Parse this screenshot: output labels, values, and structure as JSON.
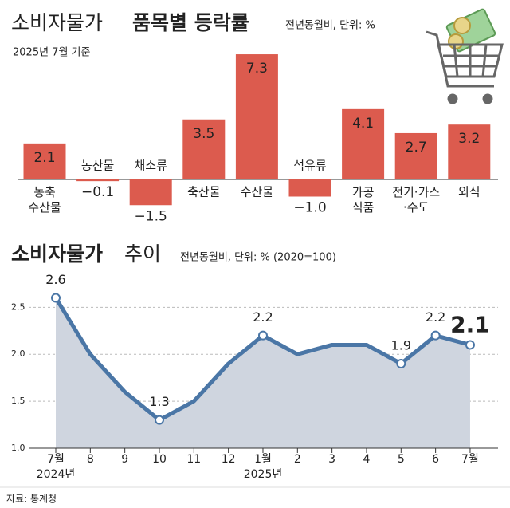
{
  "chart_data": [
    {
      "type": "bar",
      "title_light": "소비자물가",
      "title_bold": "품목별 등락률",
      "subtitle": "전년동월비, 단위: %",
      "note": "2025년 7월 기준",
      "categories": [
        "농축\n수산물",
        "농산물",
        "채소류",
        "축산물",
        "수산물",
        "석유류",
        "가공\n식품",
        "전기·가스\n·수도",
        "외식"
      ],
      "values": [
        2.1,
        -0.1,
        -1.5,
        3.5,
        7.3,
        -1.0,
        4.1,
        2.7,
        3.2
      ],
      "value_labels": [
        "2.1",
        "−0.1",
        "−1.5",
        "3.5",
        "7.3",
        "−1.0",
        "4.1",
        "2.7",
        "3.2"
      ],
      "color": "#dc5b4e"
    },
    {
      "type": "line",
      "title_bold": "소비자물가",
      "title_light": "추이",
      "subtitle": "전년동월비, 단위: % (2020=100)",
      "categories": [
        "7월\n2024년",
        "8",
        "9",
        "10",
        "11",
        "12",
        "1월\n2025년",
        "2",
        "3",
        "4",
        "5",
        "6",
        "7월"
      ],
      "values": [
        2.6,
        2.0,
        1.6,
        1.3,
        1.5,
        1.9,
        2.2,
        2.0,
        2.1,
        2.1,
        1.9,
        2.2,
        2.1
      ],
      "value_labels": [
        "2.6",
        null,
        null,
        "1.3",
        null,
        null,
        "2.2",
        null,
        null,
        null,
        "1.9",
        "2.2",
        "2.1"
      ],
      "color": "#4a76a6",
      "area_color": "#cfd5df",
      "ylim": [
        1.0,
        2.8
      ],
      "yticks": [
        {
          "value": 1.0,
          "label": "1.0"
        },
        {
          "value": 1.5,
          "label": "1.5"
        },
        {
          "value": 2.0,
          "label": "2.0"
        },
        {
          "value": 2.5,
          "label": "2.5"
        }
      ],
      "grid": true
    }
  ],
  "source": "자료: 통계청"
}
